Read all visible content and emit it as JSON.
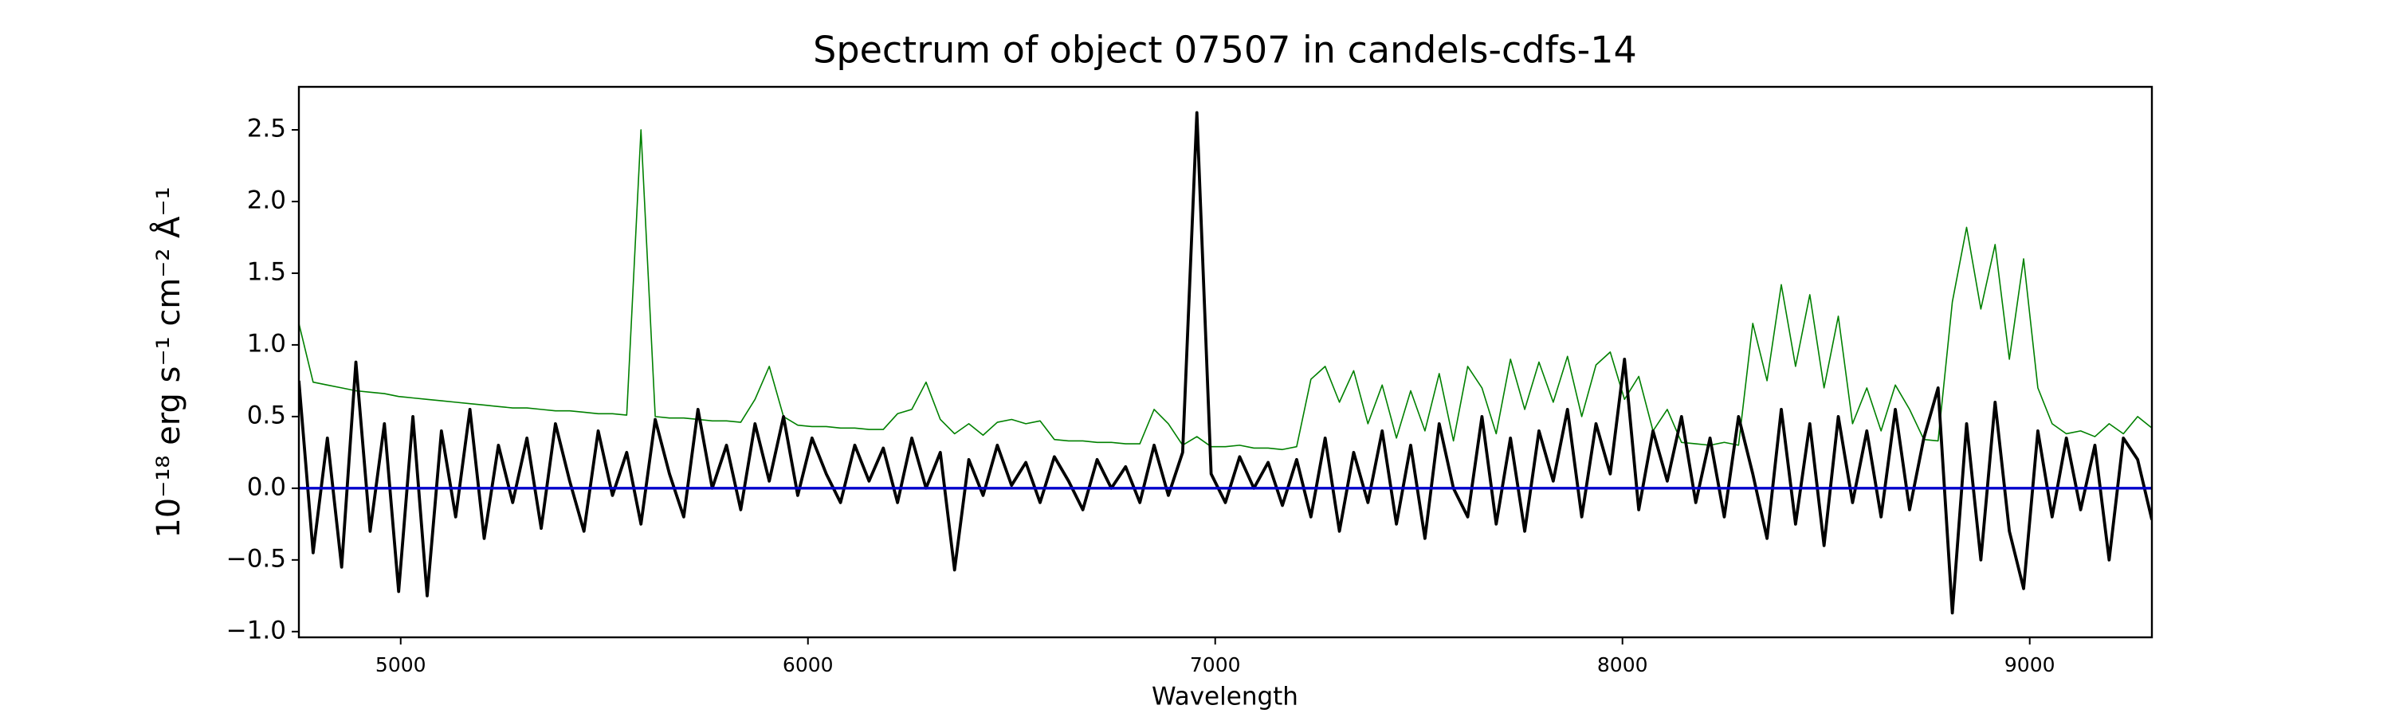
{
  "chart_data": {
    "type": "line",
    "title": "Spectrum of object 07507 in candels-cdfs-14",
    "x_label": "Wavelength",
    "y_label": "10⁻¹⁸ erg s⁻¹ cm⁻² Å⁻¹",
    "xlim": [
      4750,
      9300
    ],
    "ylim": [
      -1.04,
      2.8
    ],
    "xticks": [
      5000,
      6000,
      7000,
      8000,
      9000
    ],
    "yticks": [
      {
        "value": -1.0,
        "label": "−1.0"
      },
      {
        "value": -0.5,
        "label": "−0.5"
      },
      {
        "value": 0,
        "label": "0.0"
      },
      0.5,
      {
        "value": 1.0,
        "label": "1.0"
      },
      1.5,
      {
        "value": 2.0,
        "label": "2.0"
      },
      2.5
    ],
    "x": [
      4750,
      4785,
      4820,
      4855,
      4890,
      4925,
      4960,
      4995,
      5030,
      5065,
      5100,
      5135,
      5170,
      5205,
      5240,
      5275,
      5310,
      5345,
      5380,
      5415,
      5450,
      5485,
      5520,
      5555,
      5590,
      5625,
      5660,
      5695,
      5730,
      5765,
      5800,
      5835,
      5870,
      5905,
      5940,
      5975,
      6010,
      6045,
      6080,
      6115,
      6150,
      6185,
      6220,
      6255,
      6290,
      6325,
      6360,
      6395,
      6430,
      6465,
      6500,
      6535,
      6570,
      6605,
      6640,
      6675,
      6710,
      6745,
      6780,
      6815,
      6850,
      6885,
      6920,
      6955,
      6990,
      7025,
      7060,
      7095,
      7130,
      7165,
      7200,
      7235,
      7270,
      7305,
      7340,
      7375,
      7410,
      7445,
      7480,
      7515,
      7550,
      7585,
      7620,
      7655,
      7690,
      7725,
      7760,
      7795,
      7830,
      7865,
      7900,
      7935,
      7970,
      8005,
      8040,
      8075,
      8110,
      8145,
      8180,
      8215,
      8250,
      8285,
      8320,
      8355,
      8390,
      8425,
      8460,
      8495,
      8530,
      8565,
      8600,
      8635,
      8670,
      8705,
      8740,
      8775,
      8810,
      8845,
      8880,
      8915,
      8950,
      8985,
      9020,
      9055,
      9090,
      9125,
      9160,
      9195,
      9230,
      9265,
      9300
    ],
    "series": [
      {
        "color": "#008000",
        "width": 1.6,
        "values": [
          1.15,
          0.74,
          0.72,
          0.7,
          0.68,
          0.67,
          0.66,
          0.64,
          0.63,
          0.62,
          0.61,
          0.6,
          0.59,
          0.58,
          0.57,
          0.56,
          0.56,
          0.55,
          0.54,
          0.54,
          0.53,
          0.52,
          0.52,
          0.51,
          2.5,
          0.5,
          0.49,
          0.49,
          0.48,
          0.47,
          0.47,
          0.46,
          0.62,
          0.85,
          0.5,
          0.44,
          0.43,
          0.43,
          0.42,
          0.42,
          0.41,
          0.41,
          0.52,
          0.55,
          0.74,
          0.48,
          0.38,
          0.45,
          0.37,
          0.46,
          0.48,
          0.45,
          0.47,
          0.34,
          0.33,
          0.33,
          0.32,
          0.32,
          0.31,
          0.31,
          0.55,
          0.45,
          0.3,
          0.36,
          0.29,
          0.29,
          0.3,
          0.28,
          0.28,
          0.27,
          0.29,
          0.76,
          0.85,
          0.6,
          0.82,
          0.45,
          0.72,
          0.35,
          0.68,
          0.4,
          0.8,
          0.33,
          0.85,
          0.7,
          0.38,
          0.9,
          0.55,
          0.88,
          0.6,
          0.92,
          0.5,
          0.86,
          0.95,
          0.62,
          0.78,
          0.4,
          0.55,
          0.32,
          0.31,
          0.3,
          0.32,
          0.3,
          1.15,
          0.75,
          1.42,
          0.85,
          1.35,
          0.7,
          1.2,
          0.45,
          0.7,
          0.4,
          0.72,
          0.55,
          0.34,
          0.33,
          1.3,
          1.82,
          1.25,
          1.7,
          0.9,
          1.6,
          0.7,
          0.45,
          0.38,
          0.4,
          0.36,
          0.45,
          0.38,
          0.5,
          0.42
        ]
      },
      {
        "color": "#000000",
        "width": 3.8,
        "values": [
          0.75,
          -0.45,
          0.35,
          -0.55,
          0.88,
          -0.3,
          0.45,
          -0.72,
          0.5,
          -0.75,
          0.4,
          -0.2,
          0.55,
          -0.35,
          0.3,
          -0.1,
          0.35,
          -0.28,
          0.45,
          0.05,
          -0.3,
          0.4,
          -0.05,
          0.25,
          -0.25,
          0.48,
          0.1,
          -0.2,
          0.55,
          0.0,
          0.3,
          -0.15,
          0.45,
          0.05,
          0.5,
          -0.05,
          0.35,
          0.1,
          -0.1,
          0.3,
          0.05,
          0.28,
          -0.1,
          0.35,
          0.0,
          0.25,
          -0.57,
          0.2,
          -0.05,
          0.3,
          0.02,
          0.18,
          -0.1,
          0.22,
          0.05,
          -0.15,
          0.2,
          0.0,
          0.15,
          -0.1,
          0.3,
          -0.05,
          0.25,
          2.62,
          0.1,
          -0.1,
          0.22,
          0.0,
          0.18,
          -0.12,
          0.2,
          -0.2,
          0.35,
          -0.3,
          0.25,
          -0.1,
          0.4,
          -0.25,
          0.3,
          -0.35,
          0.45,
          0.0,
          -0.2,
          0.5,
          -0.25,
          0.35,
          -0.3,
          0.4,
          0.05,
          0.55,
          -0.2,
          0.45,
          0.1,
          0.9,
          -0.15,
          0.4,
          0.05,
          0.5,
          -0.1,
          0.35,
          -0.2,
          0.5,
          0.1,
          -0.35,
          0.55,
          -0.25,
          0.45,
          -0.4,
          0.5,
          -0.1,
          0.4,
          -0.2,
          0.55,
          -0.15,
          0.35,
          0.7,
          -0.87,
          0.45,
          -0.5,
          0.6,
          -0.3,
          -0.7,
          0.4,
          -0.2,
          0.35,
          -0.15,
          0.3,
          -0.5,
          0.35,
          0.2,
          -0.22
        ]
      },
      {
        "color": "#0000cc",
        "width": 3.4,
        "x": [
          4750,
          9300
        ],
        "values": [
          0,
          0
        ]
      }
    ]
  }
}
